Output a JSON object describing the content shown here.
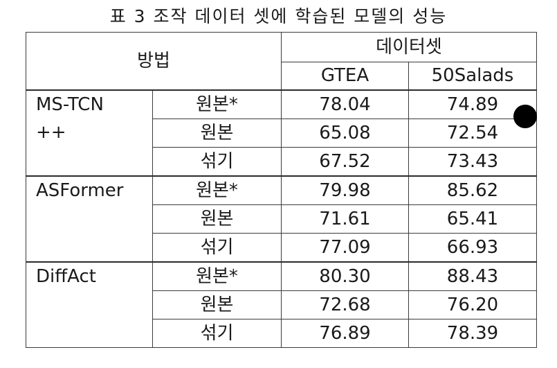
{
  "caption": "표 3 조작 데이터 셋에 학습된 모델의 성능",
  "header": {
    "method": "방법",
    "dataset": "데이터셋",
    "columns": [
      "GTEA",
      "50Salads"
    ]
  },
  "groups": [
    {
      "method_line1": "MS-TCN",
      "method_line2": "++",
      "rows": [
        {
          "variant": "원본*",
          "gtea": "78.04",
          "salads": "74.89"
        },
        {
          "variant": "원본",
          "gtea": "65.08",
          "salads": "72.54"
        },
        {
          "variant": "섞기",
          "gtea": "67.52",
          "salads": "73.43"
        }
      ]
    },
    {
      "method_line1": "ASFormer",
      "method_line2": "",
      "rows": [
        {
          "variant": "원본*",
          "gtea": "79.98",
          "salads": "85.62"
        },
        {
          "variant": "원본",
          "gtea": "71.61",
          "salads": "65.41"
        },
        {
          "variant": "섞기",
          "gtea": "77.09",
          "salads": "66.93"
        }
      ]
    },
    {
      "method_line1": "DiffAct",
      "method_line2": "",
      "rows": [
        {
          "variant": "원본*",
          "gtea": "80.30",
          "salads": "88.43"
        },
        {
          "variant": "원본",
          "gtea": "72.68",
          "salads": "76.20"
        },
        {
          "variant": "섞기",
          "gtea": "76.89",
          "salads": "78.39"
        }
      ]
    }
  ]
}
